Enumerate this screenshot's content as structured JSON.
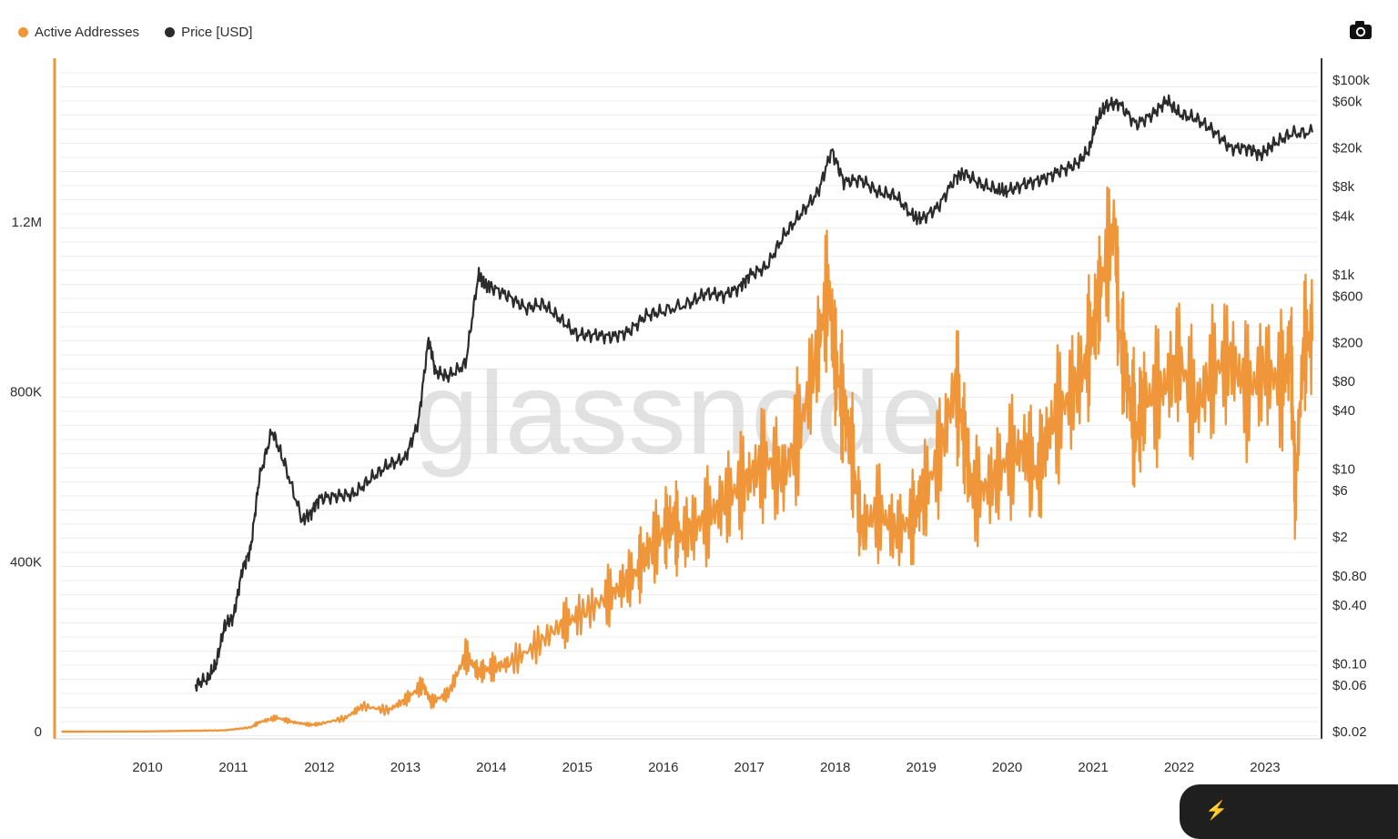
{
  "legend": {
    "active_label": "Active Addresses",
    "price_label": "Price [USD]"
  },
  "colors": {
    "active": "#f0963a",
    "price": "#2b2b2b",
    "grid": "#ececec",
    "left_axis": "#f0963a",
    "right_axis": "#333333"
  },
  "icons": {
    "camera": "camera-icon"
  },
  "watermark": "glassnode",
  "chart_data": {
    "type": "line",
    "x_ticks": [
      "2010",
      "2011",
      "2012",
      "2013",
      "2014",
      "2015",
      "2016",
      "2017",
      "2018",
      "2019",
      "2020",
      "2021",
      "2022",
      "2023"
    ],
    "x_range": [
      2009.0,
      2023.6
    ],
    "left_axis": {
      "ticks": [
        "0",
        "400K",
        "800K",
        "1.2M"
      ],
      "tick_values": [
        0,
        400000,
        800000,
        1200000
      ],
      "range": [
        0,
        1720000
      ]
    },
    "right_axis": {
      "scale": "log",
      "ticks": [
        "$100k",
        "$60k",
        "$20k",
        "$8k",
        "$4k",
        "$1k",
        "$600",
        "$200",
        "$80",
        "$40",
        "$10",
        "$6",
        "$2",
        "$0.80",
        "$0.40",
        "$0.10",
        "$0.06",
        "$0.02"
      ],
      "tick_values": [
        100000,
        60000,
        20000,
        8000,
        4000,
        1000,
        600,
        200,
        80,
        40,
        10,
        6,
        2,
        0.8,
        0.4,
        0.1,
        0.06,
        0.02
      ]
    },
    "series": [
      {
        "name": "Active Addresses",
        "axis": "left",
        "x": [
          2009.0,
          2010.0,
          2010.5,
          2010.9,
          2011.2,
          2011.3,
          2011.5,
          2011.7,
          2011.9,
          2012.0,
          2012.3,
          2012.5,
          2012.8,
          2013.0,
          2013.2,
          2013.3,
          2013.5,
          2013.7,
          2013.85,
          2014.0,
          2014.2,
          2014.5,
          2014.8,
          2015.0,
          2015.3,
          2015.5,
          2015.7,
          2015.8,
          2016.0,
          2016.1,
          2016.2,
          2016.4,
          2016.6,
          2016.8,
          2017.0,
          2017.2,
          2017.4,
          2017.6,
          2017.8,
          2017.92,
          2018.0,
          2018.1,
          2018.2,
          2018.3,
          2018.5,
          2018.7,
          2018.9,
          2019.0,
          2019.2,
          2019.4,
          2019.5,
          2019.6,
          2019.8,
          2020.0,
          2020.2,
          2020.35,
          2020.5,
          2020.7,
          2020.9,
          2021.0,
          2021.1,
          2021.25,
          2021.3,
          2021.4,
          2021.5,
          2021.6,
          2021.8,
          2022.0,
          2022.2,
          2022.4,
          2022.6,
          2022.8,
          2023.0,
          2023.2,
          2023.3,
          2023.35,
          2023.45,
          2023.55
        ],
        "y": [
          0,
          500,
          2000,
          3000,
          10000,
          22000,
          33000,
          22000,
          16000,
          18000,
          32000,
          60000,
          50000,
          75000,
          110000,
          70000,
          90000,
          180000,
          140000,
          150000,
          160000,
          200000,
          250000,
          270000,
          310000,
          340000,
          380000,
          420000,
          470000,
          500000,
          460000,
          490000,
          520000,
          560000,
          600000,
          640000,
          600000,
          720000,
          900000,
          1050000,
          870000,
          760000,
          650000,
          480000,
          520000,
          470000,
          500000,
          550000,
          640000,
          820000,
          690000,
          560000,
          580000,
          640000,
          670000,
          600000,
          720000,
          780000,
          860000,
          950000,
          1060000,
          1200000,
          950000,
          820000,
          700000,
          780000,
          800000,
          880000,
          760000,
          850000,
          880000,
          800000,
          850000,
          820000,
          900000,
          560000,
          920000,
          920000
        ]
      },
      {
        "name": "Price [USD]",
        "axis": "right",
        "x": [
          2010.55,
          2010.7,
          2010.8,
          2010.9,
          2011.0,
          2011.1,
          2011.2,
          2011.3,
          2011.45,
          2011.6,
          2011.8,
          2011.9,
          2012.0,
          2012.2,
          2012.4,
          2012.6,
          2012.8,
          2013.0,
          2013.15,
          2013.27,
          2013.35,
          2013.5,
          2013.7,
          2013.85,
          2013.92,
          2014.0,
          2014.2,
          2014.4,
          2014.6,
          2014.8,
          2015.0,
          2015.2,
          2015.4,
          2015.6,
          2015.8,
          2016.0,
          2016.3,
          2016.5,
          2016.7,
          2016.9,
          2017.0,
          2017.2,
          2017.4,
          2017.6,
          2017.8,
          2017.96,
          2018.1,
          2018.3,
          2018.5,
          2018.7,
          2018.9,
          2019.0,
          2019.2,
          2019.4,
          2019.5,
          2019.7,
          2019.9,
          2020.0,
          2020.2,
          2020.4,
          2020.6,
          2020.8,
          2020.95,
          2021.05,
          2021.15,
          2021.3,
          2021.5,
          2021.7,
          2021.86,
          2022.0,
          2022.2,
          2022.4,
          2022.6,
          2022.8,
          2022.95,
          2023.1,
          2023.3,
          2023.55
        ],
        "y": [
          0.06,
          0.07,
          0.1,
          0.25,
          0.3,
          0.9,
          1.5,
          8,
          25,
          11,
          3,
          3.5,
          5,
          5.3,
          5.5,
          8,
          11,
          13,
          30,
          220,
          100,
          90,
          120,
          1000,
          800,
          750,
          600,
          450,
          500,
          350,
          240,
          240,
          230,
          260,
          380,
          420,
          500,
          650,
          610,
          750,
          980,
          1200,
          2500,
          4200,
          7000,
          19000,
          9000,
          9500,
          7000,
          6500,
          4000,
          3700,
          5000,
          10000,
          11000,
          8400,
          7400,
          7200,
          8500,
          9500,
          11500,
          13500,
          19000,
          40000,
          55000,
          58000,
          35000,
          45000,
          62000,
          45000,
          40000,
          30000,
          20000,
          20000,
          17000,
          22000,
          28000,
          29000
        ]
      }
    ]
  }
}
